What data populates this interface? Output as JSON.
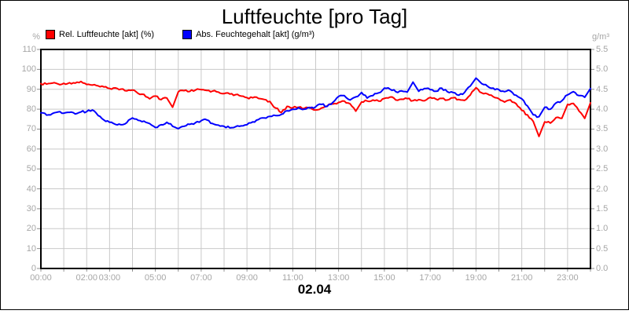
{
  "title": "Luftfeuchte [pro Tag]",
  "date_label": "02.04",
  "legend": [
    {
      "label": "Rel. Luftfeuchte [akt] (%)",
      "color": "#ff0000"
    },
    {
      "label": "Abs. Feuchtegehalt [akt] (g/m³)",
      "color": "#0000ff"
    }
  ],
  "chart_data": {
    "type": "line",
    "title": "Luftfeuchte [pro Tag]",
    "date": "02.04",
    "grid": true,
    "legend_position": "top-left",
    "x_axis": {
      "start_hour": 0,
      "end_hour": 24,
      "step_hours": 0.25,
      "grid_every_hours": 1,
      "tick_labels": [
        {
          "label": "00:00",
          "hour": 0
        },
        {
          "label": "02:00",
          "hour": 2
        },
        {
          "label": "03:00",
          "hour": 3
        },
        {
          "label": "05:00",
          "hour": 5
        },
        {
          "label": "07:00",
          "hour": 7
        },
        {
          "label": "09:00",
          "hour": 9
        },
        {
          "label": "11:00",
          "hour": 11
        },
        {
          "label": "13:00",
          "hour": 13
        },
        {
          "label": "15:00",
          "hour": 15
        },
        {
          "label": "17:00",
          "hour": 17
        },
        {
          "label": "19:00",
          "hour": 19
        },
        {
          "label": "21:00",
          "hour": 21
        },
        {
          "label": "23:00",
          "hour": 23
        }
      ]
    },
    "y_left": {
      "unit": "%",
      "min": 0,
      "max": 110,
      "step": 10,
      "ticks": [
        "110",
        "100",
        "90",
        "80",
        "70",
        "60",
        "50",
        "40",
        "30",
        "20",
        "10",
        "0"
      ]
    },
    "y_right": {
      "unit": "g/m³",
      "min": 0.0,
      "max": 5.5,
      "step": 0.5,
      "ticks": [
        "5.5",
        "5.0",
        "4.5",
        "4.0",
        "3.5",
        "3.0",
        "2.5",
        "2.0",
        "1.5",
        "1.0",
        "0.5",
        "0.0"
      ]
    },
    "series": [
      {
        "name": "Rel. Luftfeuchte [akt] (%)",
        "axis": "left",
        "color": "#ff0000",
        "values": [
          92.8,
          92.6,
          93.1,
          92.7,
          93.0,
          93.3,
          93.1,
          93.9,
          92.4,
          92.1,
          91.7,
          91.2,
          90.4,
          90.7,
          90.1,
          89.2,
          89.6,
          87.9,
          87.4,
          85.2,
          86.6,
          84.8,
          85.6,
          81.0,
          88.7,
          89.3,
          88.9,
          89.6,
          89.8,
          89.4,
          89.1,
          88.6,
          87.8,
          87.6,
          87.3,
          86.6,
          85.8,
          85.7,
          85.4,
          84.9,
          83.9,
          80.6,
          78.3,
          81.4,
          80.7,
          81.0,
          80.4,
          80.9,
          79.6,
          80.6,
          81.6,
          82.6,
          83.4,
          84.1,
          82.7,
          79.0,
          83.6,
          84.1,
          84.6,
          84.1,
          85.4,
          86.1,
          84.6,
          85.0,
          85.3,
          84.3,
          84.8,
          84.2,
          85.9,
          85.1,
          85.4,
          84.6,
          85.7,
          84.9,
          84.4,
          87.1,
          90.8,
          88.2,
          87.7,
          86.3,
          85.2,
          83.6,
          84.7,
          82.8,
          79.4,
          77.1,
          73.9,
          66.3,
          73.6,
          73.0,
          75.8,
          75.4,
          82.4,
          82.9,
          79.1,
          75.4,
          83.2
        ]
      },
      {
        "name": "Abs. Feuchtegehalt [akt] (g/m³)",
        "axis": "right",
        "color": "#0000ff",
        "values": [
          3.91,
          3.85,
          3.89,
          3.93,
          3.9,
          3.92,
          3.88,
          3.93,
          3.94,
          3.98,
          3.84,
          3.73,
          3.67,
          3.62,
          3.61,
          3.66,
          3.78,
          3.72,
          3.7,
          3.64,
          3.54,
          3.61,
          3.67,
          3.57,
          3.51,
          3.57,
          3.62,
          3.66,
          3.71,
          3.73,
          3.64,
          3.6,
          3.57,
          3.53,
          3.56,
          3.58,
          3.61,
          3.68,
          3.74,
          3.78,
          3.82,
          3.84,
          3.87,
          3.96,
          4.0,
          4.04,
          4.0,
          4.03,
          4.06,
          4.12,
          4.07,
          4.17,
          4.32,
          4.34,
          4.23,
          4.31,
          4.42,
          4.28,
          4.34,
          4.41,
          4.53,
          4.5,
          4.44,
          4.46,
          4.43,
          4.68,
          4.45,
          4.52,
          4.49,
          4.45,
          4.53,
          4.44,
          4.42,
          4.35,
          4.42,
          4.58,
          4.78,
          4.64,
          4.58,
          4.53,
          4.49,
          4.44,
          4.46,
          4.35,
          4.26,
          4.08,
          3.86,
          3.81,
          4.05,
          4.0,
          4.16,
          4.21,
          4.36,
          4.44,
          4.34,
          4.3,
          4.52
        ]
      }
    ],
    "style": {
      "grid_color": "#c9c9c9",
      "tick_color": "#8c8c8c",
      "label_color": "#a6a6a6",
      "plot_border_color": "#000000"
    }
  }
}
